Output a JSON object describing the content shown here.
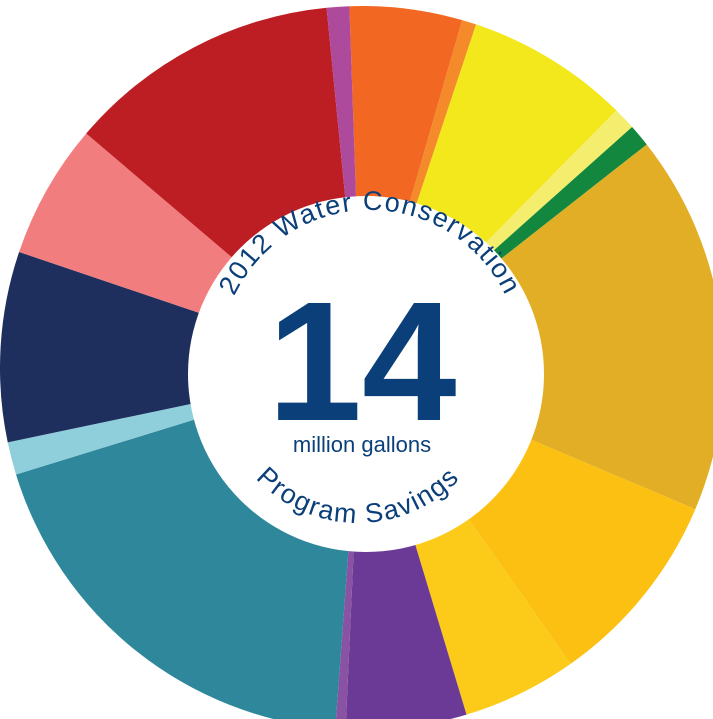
{
  "chart_data": {
    "type": "pie",
    "title_top": "2012 Water Conservation",
    "title_bottom": "Program Savings",
    "center_value": "14",
    "center_unit": "million gallons",
    "slices": [
      {
        "value": 5.5,
        "color": "#f26822"
      },
      {
        "value": 0.7,
        "color": "#f58a2a"
      },
      {
        "value": 8.0,
        "color": "#f2e81b"
      },
      {
        "value": 1.1,
        "color": "#f4ed6d"
      },
      {
        "value": 1.1,
        "color": "#12873d"
      },
      {
        "value": 18.6,
        "color": "#e1ae25"
      },
      {
        "value": 9.7,
        "color": "#fcc013"
      },
      {
        "value": 5.6,
        "color": "#fccb1a"
      },
      {
        "value": 5.9,
        "color": "#6b3a96"
      },
      {
        "value": 0.5,
        "color": "#8a52a3"
      },
      {
        "value": 20.9,
        "color": "#2e879b"
      },
      {
        "value": 1.6,
        "color": "#8fcfdc"
      },
      {
        "value": 9.3,
        "color": "#1f2f5d"
      },
      {
        "value": 6.6,
        "color": "#f27d7e"
      },
      {
        "value": 13.4,
        "color": "#bd1e24"
      },
      {
        "value": 1.1,
        "color": "#ae4a9c"
      }
    ]
  }
}
